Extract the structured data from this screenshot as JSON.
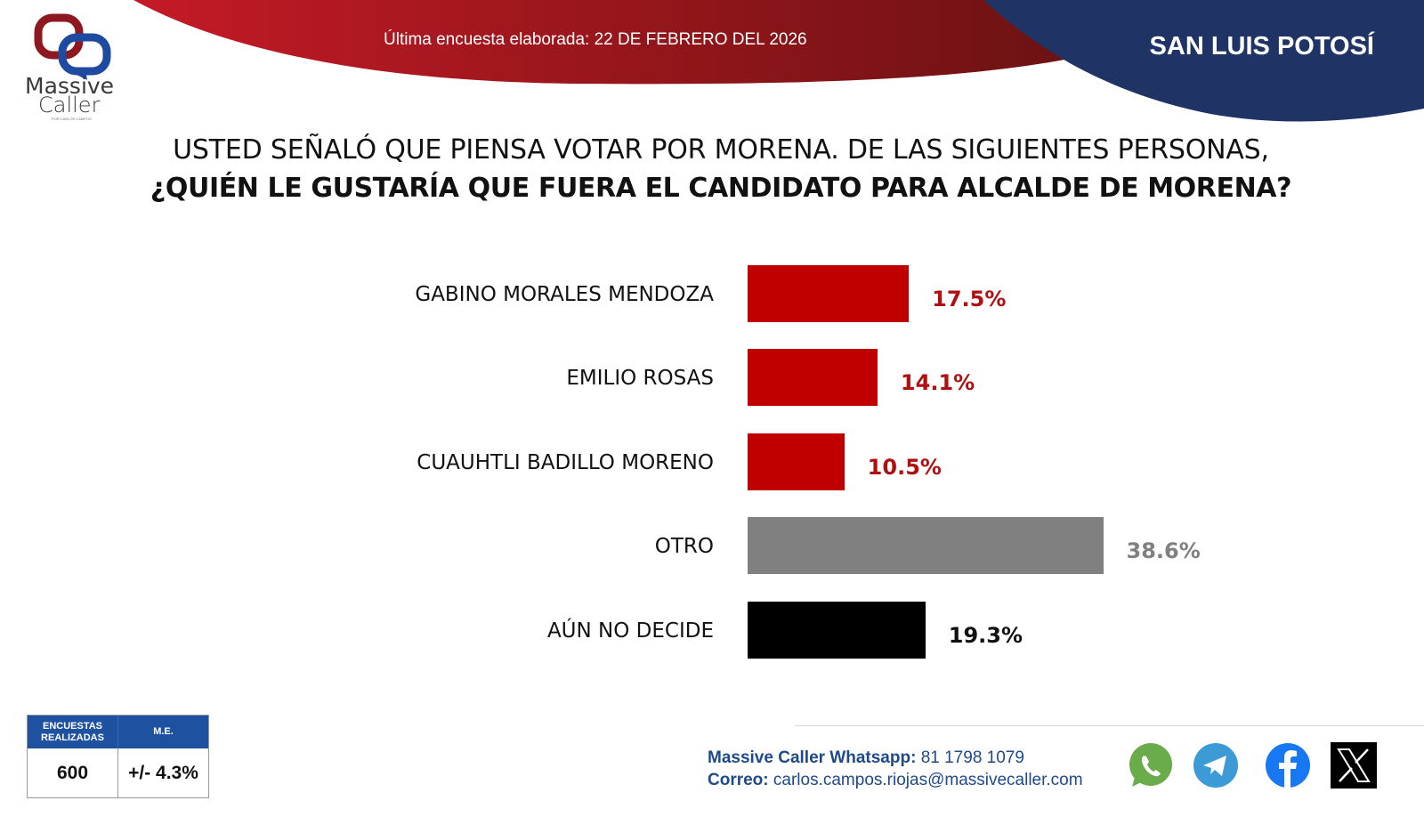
{
  "header": {
    "brand_line1": "Massive",
    "brand_line2": "Caller",
    "brand_sub": "POR CARLOS CAMPOS",
    "survey_date": "Última encuesta elaborada: 22 DE FEBRERO DEL 2026",
    "region": "SAN LUIS POTOSÍ"
  },
  "colors": {
    "red": "#c00000",
    "gray": "#808080",
    "black": "#000000",
    "navy": "#1f3464",
    "stats_blue": "#1e52a0"
  },
  "chart_data": {
    "type": "bar",
    "orientation": "horizontal",
    "title": "USTED SEÑALÓ QUE PIENSA VOTAR POR MORENA. DE LAS SIGUIENTES PERSONAS,",
    "subtitle": "¿QUIÉN LE GUSTARÍA QUE FUERA EL CANDIDATO PARA ALCALDE DE MORENA?",
    "categories": [
      "GABINO MORALES MENDOZA",
      "EMILIO ROSAS",
      "CUAUHTLI BADILLO MORENO",
      "OTRO",
      "AÚN NO DECIDE"
    ],
    "values": [
      17.5,
      14.1,
      10.5,
      38.6,
      19.3
    ],
    "value_labels": [
      "17.5%",
      "14.1%",
      "10.5%",
      "38.6%",
      "19.3%"
    ],
    "bar_colors": [
      "#c00000",
      "#c00000",
      "#c00000",
      "#808080",
      "#000000"
    ],
    "label_colors": [
      "#b01010",
      "#b01010",
      "#b01010",
      "#808080",
      "#111111"
    ],
    "xlabel": "",
    "ylabel": "",
    "xlim": [
      0,
      45
    ],
    "grid": false,
    "legend": "none"
  },
  "stats": {
    "col1_header": "ENCUESTAS REALIZADAS",
    "col2_header": "M.E.",
    "col1_value": "600",
    "col2_value": "+/- 4.3%"
  },
  "contact": {
    "whatsapp_label": "Massive Caller Whatsapp:",
    "whatsapp_number": "81 1798 1079",
    "email_label": "Correo:",
    "email": "carlos.campos.riojas@massivecaller.com"
  },
  "social_icons": [
    "whatsapp-icon",
    "telegram-icon",
    "facebook-icon",
    "x-icon"
  ]
}
